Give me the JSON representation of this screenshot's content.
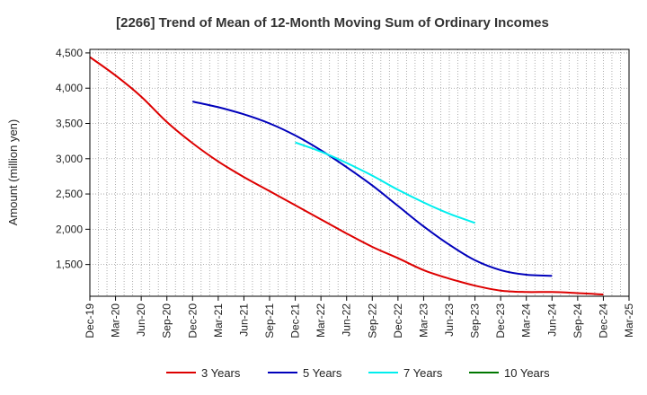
{
  "chart_data": {
    "type": "line",
    "title": "[2266]  Trend of Mean of 12-Month Moving Sum of Ordinary Incomes",
    "xlabel": "",
    "ylabel": "Amount (million yen)",
    "ylim": [
      1050,
      4550
    ],
    "yticks": [
      1500,
      2000,
      2500,
      3000,
      3500,
      4000,
      4500
    ],
    "ytick_labels": [
      "1,500",
      "2,000",
      "2,500",
      "3,000",
      "3,500",
      "4,000",
      "4,500"
    ],
    "x_categories": [
      "Dec-19",
      "Mar-20",
      "Jun-20",
      "Sep-20",
      "Dec-20",
      "Mar-21",
      "Jun-21",
      "Sep-21",
      "Dec-21",
      "Mar-22",
      "Jun-22",
      "Sep-22",
      "Dec-22",
      "Mar-23",
      "Jun-23",
      "Sep-23",
      "Dec-23",
      "Mar-24",
      "Jun-24",
      "Sep-24",
      "Dec-24",
      "Mar-25"
    ],
    "grid": true,
    "legend_position": "bottom",
    "series": [
      {
        "name": "3 Years",
        "color": "#dd0000",
        "values": [
          4440,
          4180,
          3880,
          3520,
          3220,
          2960,
          2740,
          2540,
          2340,
          2140,
          1940,
          1750,
          1590,
          1420,
          1300,
          1200,
          1130,
          1110,
          1110,
          1095,
          1075,
          null
        ]
      },
      {
        "name": "5 Years",
        "color": "#0000bb",
        "values": [
          null,
          null,
          null,
          null,
          3810,
          3730,
          3630,
          3500,
          3330,
          3120,
          2880,
          2620,
          2330,
          2040,
          1780,
          1560,
          1420,
          1355,
          1340,
          null,
          null,
          null
        ]
      },
      {
        "name": "7 Years",
        "color": "#00eeee",
        "values": [
          null,
          null,
          null,
          null,
          null,
          null,
          null,
          null,
          3230,
          3100,
          2940,
          2760,
          2560,
          2380,
          2220,
          2090,
          null,
          null,
          null,
          null,
          null,
          null
        ]
      },
      {
        "name": "10 Years",
        "color": "#007700",
        "values": [
          null,
          null,
          null,
          null,
          null,
          null,
          null,
          null,
          null,
          null,
          null,
          null,
          null,
          null,
          null,
          null,
          null,
          null,
          null,
          null,
          null,
          null
        ]
      }
    ]
  }
}
